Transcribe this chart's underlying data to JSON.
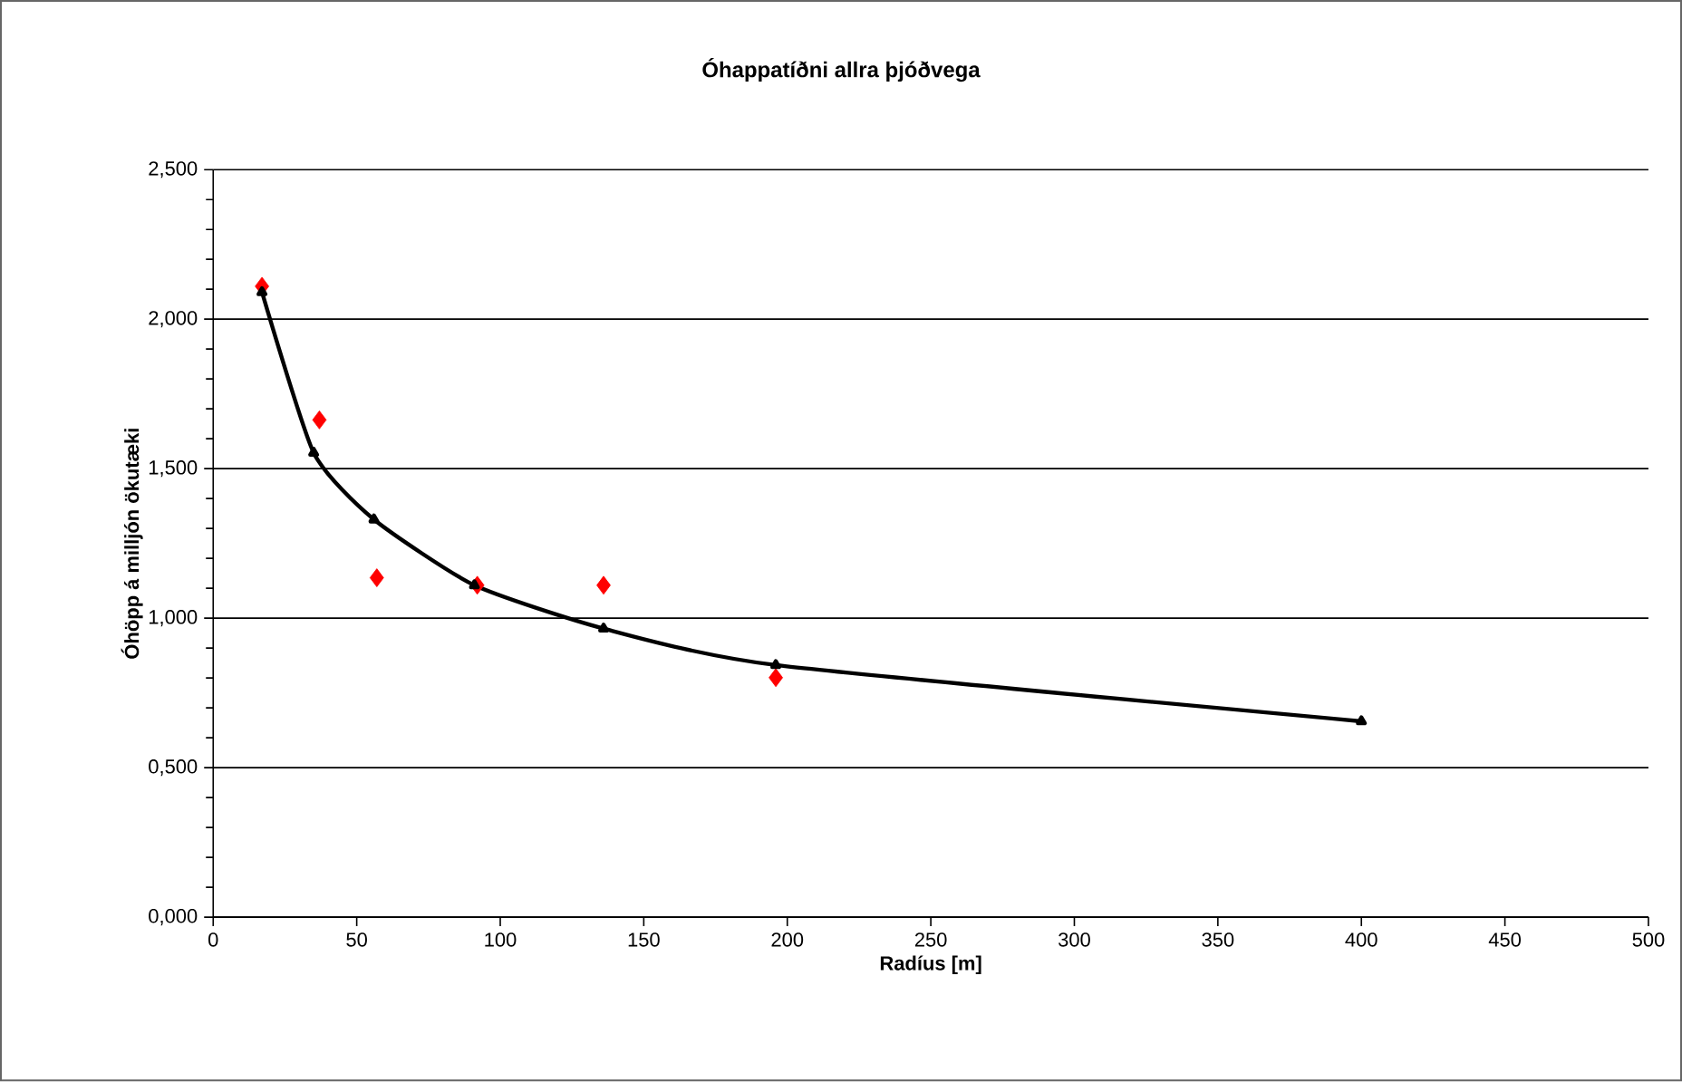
{
  "chart_data": {
    "type": "scatter",
    "title": "Óhappatíðni allra þjóðvega",
    "xlabel": "Radíus [m]",
    "ylabel": "Óhöpp á milljón ökutæki",
    "series": [
      {
        "type": "line",
        "color": "#000000",
        "marker": "triangle",
        "x": [
          17,
          35,
          56,
          91,
          136,
          196,
          400
        ],
        "values": [
          2.09,
          1.553,
          1.33,
          1.11,
          0.965,
          0.843,
          0.655
        ]
      },
      {
        "color": "#ff0000",
        "marker": "diamond",
        "x": [
          17,
          37,
          57,
          92,
          136,
          196
        ],
        "values": [
          2.11,
          1.663,
          1.135,
          1.11,
          1.11,
          0.801
        ]
      }
    ],
    "xlim": [
      0,
      500
    ],
    "xticks": [
      0,
      50,
      100,
      150,
      200,
      250,
      300,
      350,
      400,
      450,
      500
    ],
    "ylim": [
      0,
      2.5
    ],
    "yticks": [
      {
        "value": 0,
        "label": "0,000"
      },
      {
        "value": 0.5,
        "label": "0,500"
      },
      {
        "value": 1,
        "label": "1,000"
      },
      {
        "value": 1.5,
        "label": "1,500"
      },
      {
        "value": 2,
        "label": "2,000"
      },
      {
        "value": 2.5,
        "label": "2,500"
      }
    ],
    "grid": "y"
  }
}
